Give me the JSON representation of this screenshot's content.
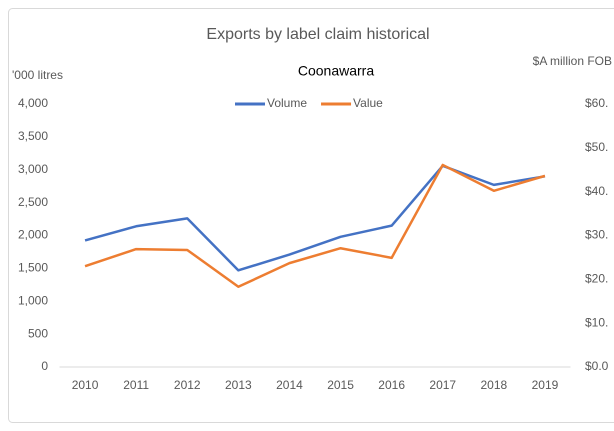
{
  "chart_data": {
    "type": "line",
    "title": "Exports by label claim historical",
    "subtitle": "Coonawarra",
    "y_label": "'000 litres",
    "y2_label": "$A million FOB",
    "categories": [
      "2010",
      "2011",
      "2012",
      "2013",
      "2014",
      "2015",
      "2016",
      "2017",
      "2018",
      "2019"
    ],
    "series": [
      {
        "name": "Volume",
        "color": "#4472c4",
        "values": [
          1925,
          2140,
          2260,
          1470,
          1710,
          1980,
          2150,
          3060,
          2770,
          2900
        ]
      },
      {
        "name": "Value",
        "color": "#ed7d31",
        "axis": "y2",
        "values": [
          23.0,
          26.9,
          26.7,
          18.3,
          23.7,
          27.1,
          24.9,
          46.1,
          40.2,
          43.6
        ]
      }
    ],
    "ylim": [
      0,
      4000
    ],
    "yticks": [
      0,
      500,
      {
        "value": 1000,
        "label": "1,000"
      },
      {
        "value": 1500,
        "label": "1,500"
      },
      {
        "value": 2000,
        "label": "2,000"
      },
      {
        "value": 2500,
        "label": "2,500"
      },
      {
        "value": 3000,
        "label": "3,000"
      },
      {
        "value": 3500,
        "label": "3,500"
      },
      {
        "value": 4000,
        "label": "4,000"
      }
    ],
    "y2lim": [
      0,
      60
    ],
    "y2ticks": [
      {
        "value": 0,
        "label": "$0.0"
      },
      {
        "value": 10,
        "label": "$10."
      },
      {
        "value": 20,
        "label": "$20."
      },
      {
        "value": 30,
        "label": "$30."
      },
      {
        "value": 40,
        "label": "$40."
      },
      {
        "value": 50,
        "label": "$50."
      },
      {
        "value": 60,
        "label": "$60."
      }
    ],
    "legend": "top",
    "grid": false
  }
}
